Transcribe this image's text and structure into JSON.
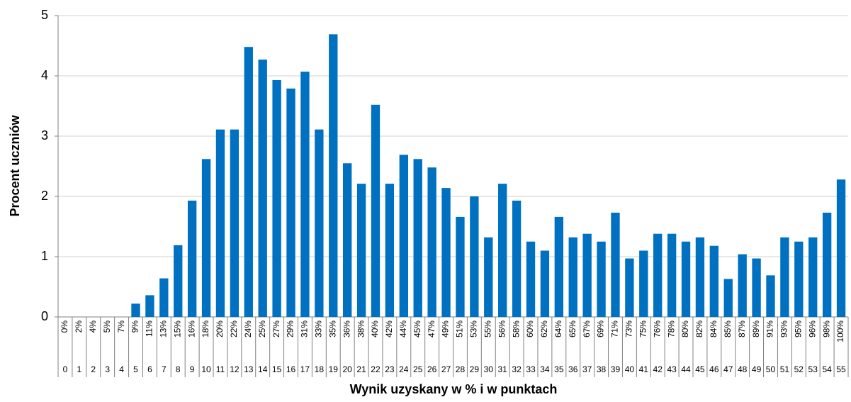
{
  "chart_data": {
    "type": "bar",
    "y_label": "Procent uczniów",
    "x_label": "Wynik uzyskany w % i w punktach",
    "categories": [
      "0",
      "1",
      "2",
      "3",
      "4",
      "5",
      "6",
      "7",
      "8",
      "9",
      "10",
      "11",
      "12",
      "13",
      "14",
      "15",
      "16",
      "17",
      "18",
      "19",
      "20",
      "21",
      "22",
      "23",
      "24",
      "25",
      "26",
      "27",
      "28",
      "29",
      "30",
      "31",
      "32",
      "33",
      "34",
      "35",
      "36",
      "37",
      "38",
      "39",
      "40",
      "41",
      "42",
      "43",
      "44",
      "45",
      "46",
      "47",
      "48",
      "49",
      "50",
      "51",
      "52",
      "53",
      "54",
      "55"
    ],
    "category_percents": [
      "0%",
      "2%",
      "4%",
      "5%",
      "7%",
      "9%",
      "11%",
      "13%",
      "15%",
      "16%",
      "18%",
      "20%",
      "22%",
      "24%",
      "25%",
      "27%",
      "29%",
      "31%",
      "33%",
      "35%",
      "36%",
      "38%",
      "40%",
      "42%",
      "44%",
      "45%",
      "47%",
      "49%",
      "51%",
      "53%",
      "55%",
      "56%",
      "58%",
      "60%",
      "62%",
      "64%",
      "65%",
      "67%",
      "69%",
      "71%",
      "73%",
      "75%",
      "76%",
      "78%",
      "80%",
      "82%",
      "84%",
      "85%",
      "87%",
      "89%",
      "91%",
      "93%",
      "95%",
      "96%",
      "98%",
      "100%"
    ],
    "values": [
      0,
      0,
      0,
      0,
      0,
      0.22,
      0.36,
      0.64,
      1.19,
      1.93,
      2.62,
      3.11,
      3.11,
      4.48,
      4.27,
      3.93,
      3.79,
      4.07,
      3.11,
      4.69,
      2.55,
      2.21,
      3.52,
      2.21,
      2.69,
      2.62,
      2.48,
      2.14,
      1.66,
      2.0,
      1.32,
      2.21,
      1.93,
      1.25,
      1.1,
      1.66,
      1.32,
      1.38,
      1.25,
      1.73,
      0.97,
      1.1,
      1.38,
      1.38,
      1.25,
      1.32,
      1.18,
      0.63,
      1.04,
      0.97,
      0.69,
      1.32,
      1.25,
      1.32,
      1.73,
      2.28
    ],
    "color": "#0070c0",
    "ylim": [
      0,
      5
    ],
    "yticks": [
      0,
      1,
      2,
      3,
      4,
      5
    ],
    "grid": true
  }
}
